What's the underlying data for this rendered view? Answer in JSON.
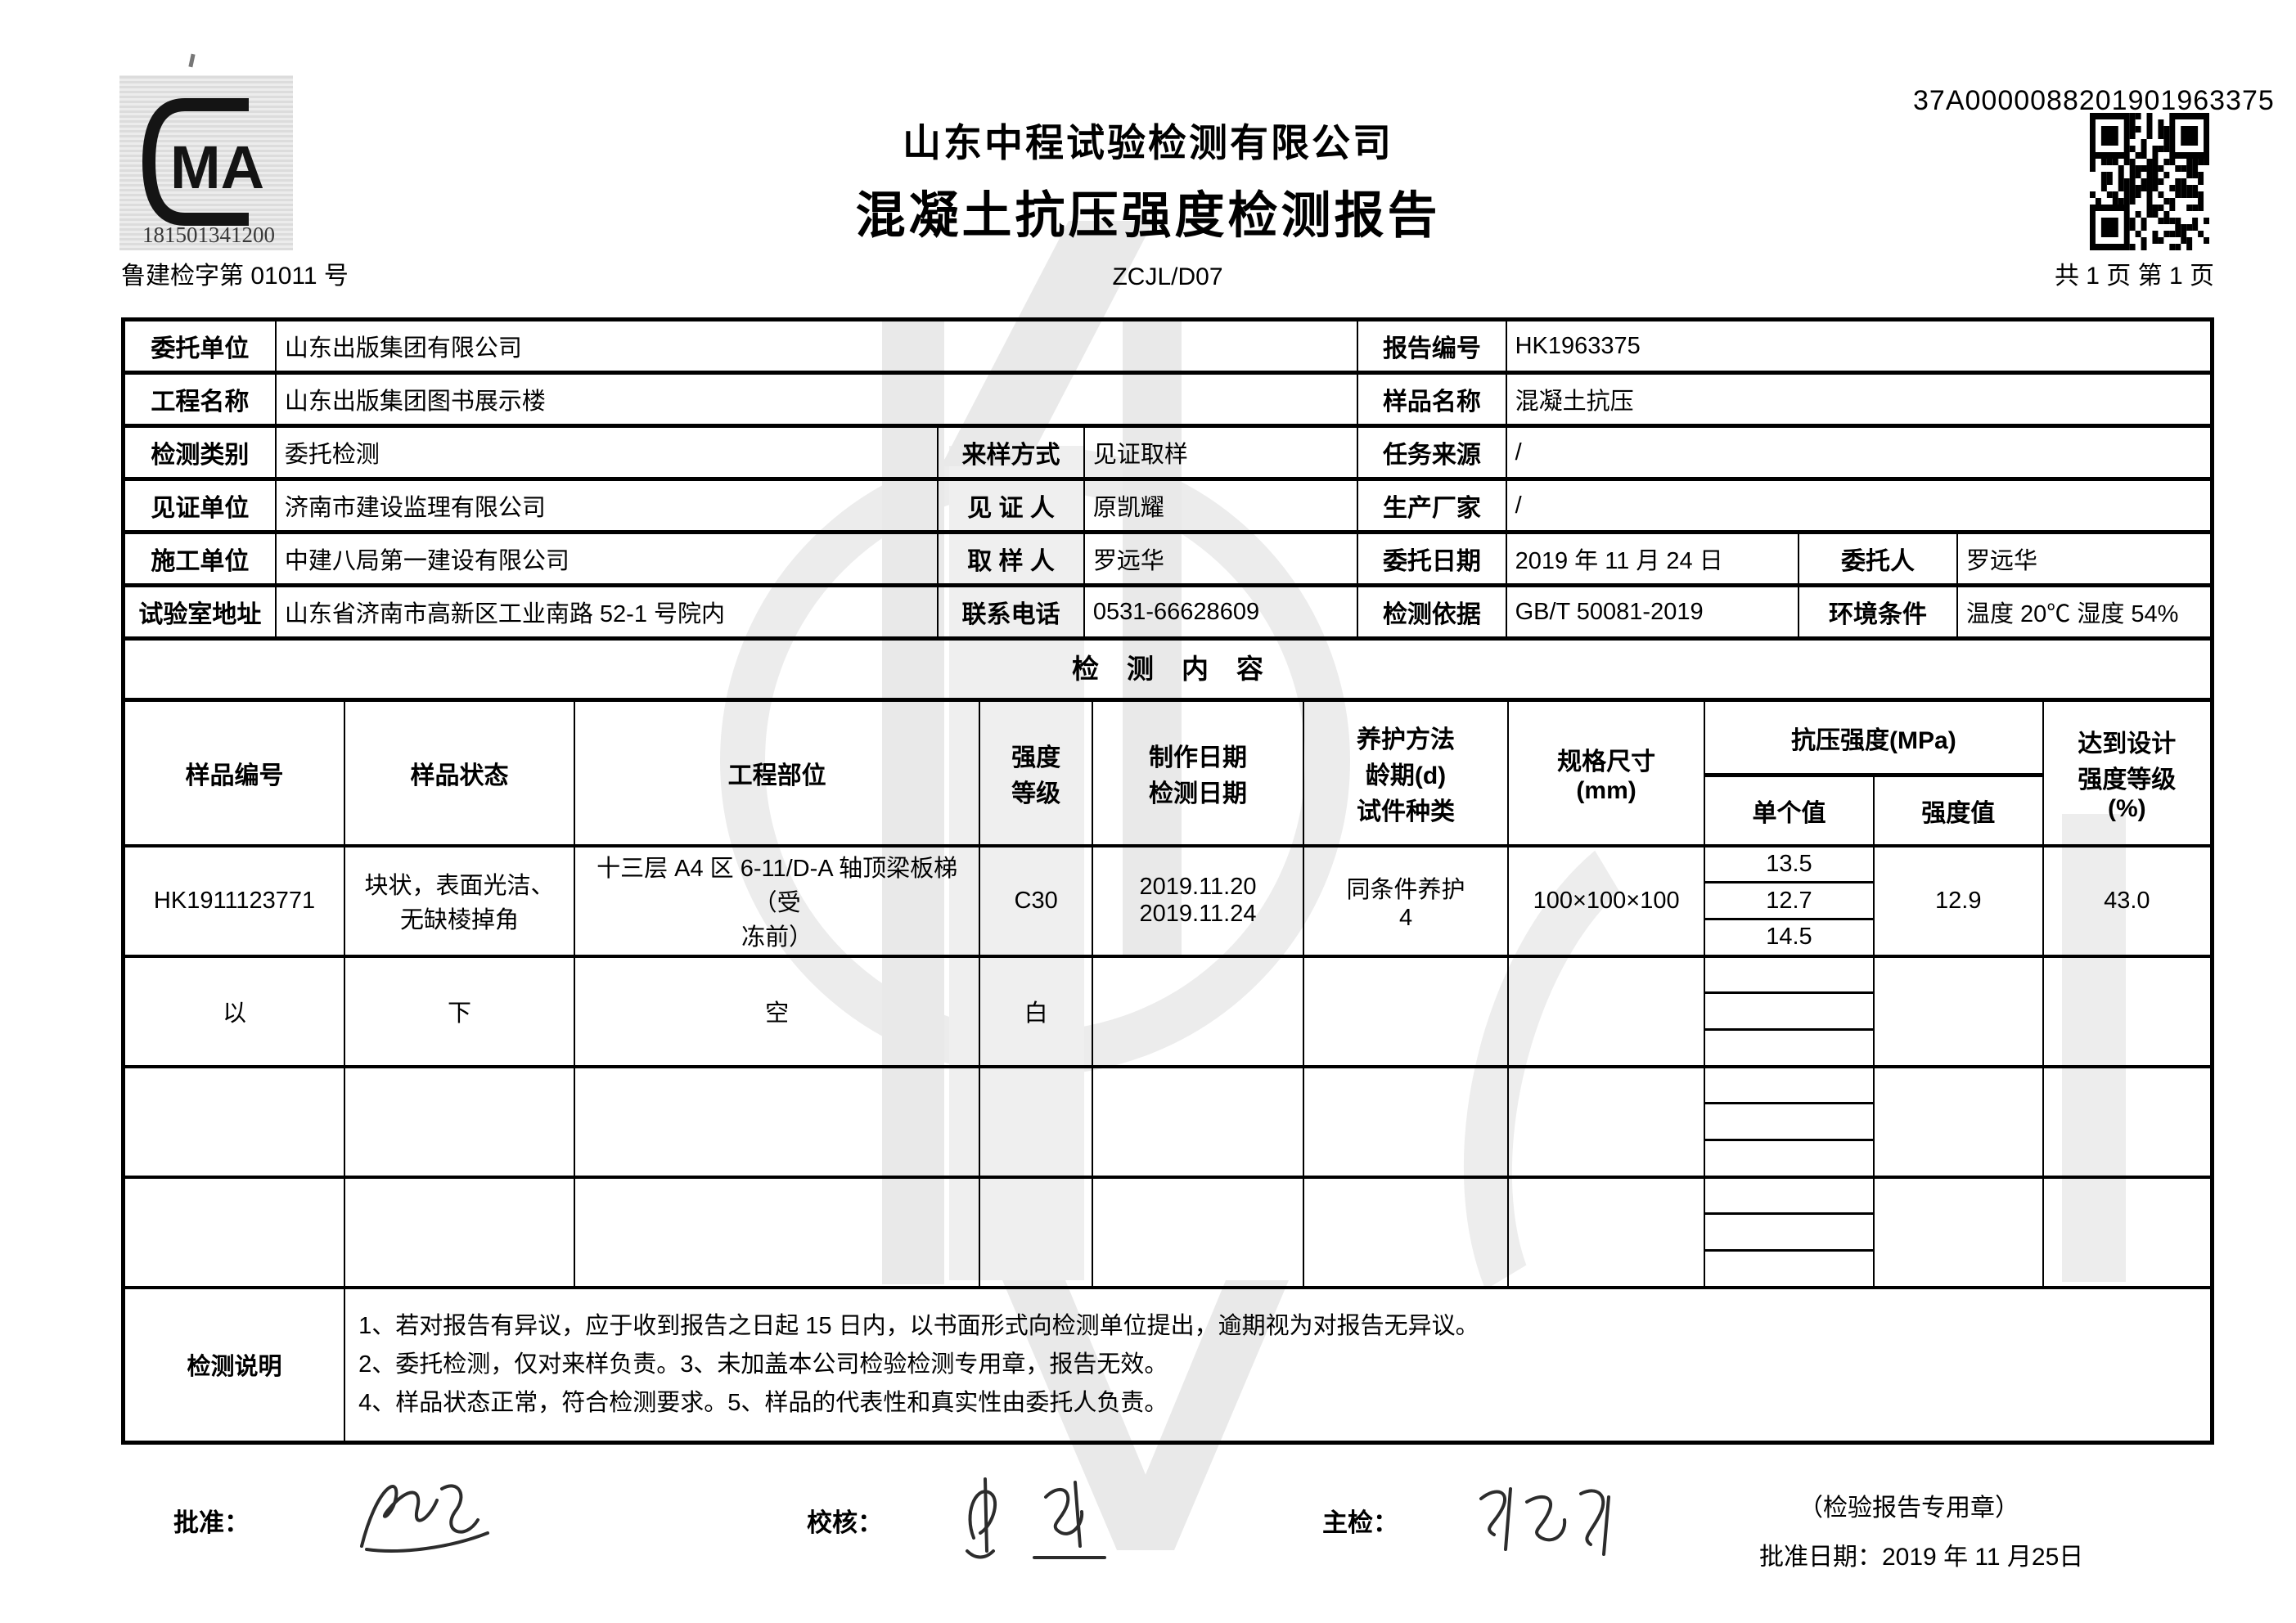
{
  "header": {
    "cma_letters": "MA",
    "cma_number": "181501341200",
    "company_name": "山东中程试验检测有限公司",
    "report_title": "混凝土抗压强度检测报告",
    "serial_number": "37A0000088201901963375",
    "cert_no": "鲁建检字第 01011 号",
    "doc_code": "ZCJL/D07",
    "page_info": "共 1 页  第 1 页"
  },
  "section_title": "检测内容",
  "info": {
    "row1": {
      "l1": "委托单位",
      "v1": "山东出版集团有限公司",
      "l2": "报告编号",
      "v2": "HK1963375"
    },
    "row2": {
      "l1": "工程名称",
      "v1": "山东出版集团图书展示楼",
      "l2": "样品名称",
      "v2": "混凝土抗压"
    },
    "row3": {
      "l1": "检测类别",
      "v1": "委托检测",
      "l2": "来样方式",
      "v2": "见证取样",
      "l3": "任务来源",
      "v3": "/"
    },
    "row4": {
      "l1": "见证单位",
      "v1": "济南市建设监理有限公司",
      "l2": "见 证 人",
      "v2": "原凯耀",
      "l3": "生产厂家",
      "v3": "/"
    },
    "row5": {
      "l1": "施工单位",
      "v1": "中建八局第一建设有限公司",
      "l2": "取 样 人",
      "v2": "罗远华",
      "l3": "委托日期",
      "v3": "2019 年 11 月 24 日",
      "l4": "委托人",
      "v4": "罗远华"
    },
    "row6": {
      "l1": "试验室地址",
      "v1": "山东省济南市高新区工业南路 52-1 号院内",
      "l2": "联系电话",
      "v2": "0531-66628609",
      "l3": "检测依据",
      "v3": "GB/T 50081-2019",
      "l4": "环境条件",
      "v4": "温度 20℃ 湿度 54%"
    }
  },
  "test": {
    "h": {
      "sample_no": "样品编号",
      "sample_state": "样品状态",
      "part": "工程部位",
      "grade": "强度\n等级",
      "dates": "制作日期\n检测日期",
      "curing": "养护方法\n龄期(d)\n试件种类",
      "size": "规格尺寸\n(mm)",
      "comp": "抗压强度(MPa)",
      "single": "单个值",
      "value": "强度值",
      "design": "达到设计\n强度等级\n(%)"
    },
    "rows": [
      {
        "sample_no": "HK1911123771",
        "state": "块状，表面光洁、\n无缺棱掉角",
        "part": "十三层 A4 区 6-11/D-A 轴顶梁板梯（受\n冻前）",
        "grade": "C30",
        "dates": "2019.11.20\n2019.11.24",
        "curing": "同条件养护\n4",
        "size": "100×100×100",
        "singles": [
          "13.5",
          "12.7",
          "14.5"
        ],
        "value": "12.9",
        "design": "43.0"
      },
      {
        "sample_no": "以",
        "state": "下",
        "part": "空",
        "grade": "白"
      }
    ]
  },
  "notes": {
    "label": "检测说明",
    "lines": [
      "1、若对报告有异议，应于收到报告之日起 15 日内，以书面形式向检测单位提出，逾期视为对报告无异议。",
      "2、委托检测，仅对来样负责。3、未加盖本公司检验检测专用章，报告无效。",
      "4、样品状态正常，符合检测要求。5、样品的代表性和真实性由委托人负责。"
    ]
  },
  "footer": {
    "approve_label": "批准：",
    "check_label": "校核：",
    "chief_label": "主检：",
    "seal_note": "（检验报告专用章）",
    "approve_date": "批准日期：2019 年 11 月25日"
  }
}
